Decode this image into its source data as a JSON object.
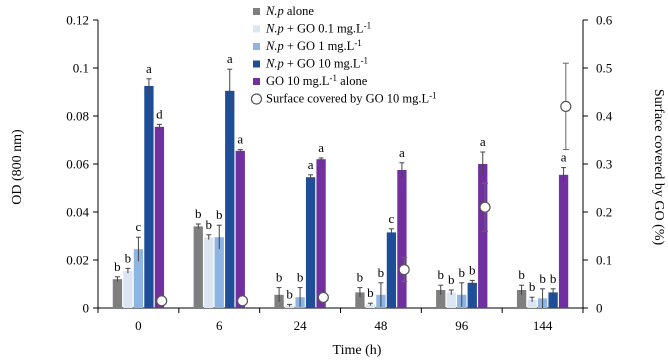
{
  "chart_data": {
    "type": "bar",
    "xlabel": "Time (h)",
    "ylabel": "OD (800 nm)",
    "y2label": "Surface covered by GO (%)",
    "categories": [
      "0",
      "6",
      "24",
      "48",
      "96",
      "144"
    ],
    "ylim": [
      0,
      0.12
    ],
    "yticks": [
      "0",
      "0.02",
      "0.04",
      "0.06",
      "0.08",
      "0.1",
      "0.12"
    ],
    "y2lim": [
      0,
      0.6
    ],
    "y2ticks": [
      "0",
      "0.1",
      "0.2",
      "0.3",
      "0.4",
      "0.5",
      "0.6"
    ],
    "grid": false,
    "legend_position": "top-center",
    "series": [
      {
        "italic": "N.p",
        "rest": " alone",
        "color": "#7f7f7f",
        "values": [
          0.012,
          0.034,
          0.0055,
          0.0065,
          0.0075,
          0.0075
        ],
        "errors": [
          0.001,
          0.001,
          0.003,
          0.002,
          0.002,
          0.002
        ],
        "letters": [
          "b",
          "b",
          "b",
          "b",
          "b",
          "b"
        ]
      },
      {
        "italic": "N.p",
        "rest": " + GO 0.1 mg.L-1",
        "color": "#dce6f2",
        "values": [
          0.0155,
          0.0295,
          0.001,
          0.0015,
          0.0065,
          0.0035
        ],
        "errors": [
          0.001,
          0.001,
          0.0005,
          0.0005,
          0.001,
          0.001
        ],
        "letters": [
          "b",
          "b",
          "b",
          "b",
          "b",
          "b"
        ]
      },
      {
        "italic": "N.p",
        "rest": " + GO 1 mg.L-1",
        "color": "#8eb4e3",
        "values": [
          0.0245,
          0.0295,
          0.0045,
          0.0055,
          0.0055,
          0.004
        ],
        "errors": [
          0.005,
          0.005,
          0.004,
          0.005,
          0.005,
          0.004
        ],
        "letters": [
          "c",
          "b",
          "b",
          "b",
          "b",
          "b"
        ]
      },
      {
        "italic": "N.p",
        "rest": " + GO 10 mg.L-1",
        "color": "#1f4e99",
        "values": [
          0.0925,
          0.0905,
          0.0545,
          0.0315,
          0.0105,
          0.0065
        ],
        "errors": [
          0.003,
          0.009,
          0.001,
          0.0015,
          0.001,
          0.0015
        ],
        "letters": [
          "a",
          "a",
          "a",
          "c",
          "b",
          "b"
        ]
      },
      {
        "italic": "",
        "rest": "GO 10 mg.L-1 alone",
        "color": "#7030a0",
        "values": [
          0.0755,
          0.0655,
          0.062,
          0.0575,
          0.06,
          0.0555
        ],
        "errors": [
          0.001,
          0.0005,
          0.0005,
          0.003,
          0.005,
          0.003
        ],
        "letters": [
          "d",
          "a",
          "a",
          "a",
          "a",
          "a"
        ]
      }
    ],
    "secondary_series": {
      "name": "Surface covered by GO 10 mg.L-1",
      "marker": "open-circle",
      "values": [
        0.015,
        0.015,
        0.022,
        0.08,
        0.21,
        0.42
      ],
      "errors": [
        0,
        0,
        0,
        0.025,
        0.05,
        0.09
      ]
    }
  }
}
